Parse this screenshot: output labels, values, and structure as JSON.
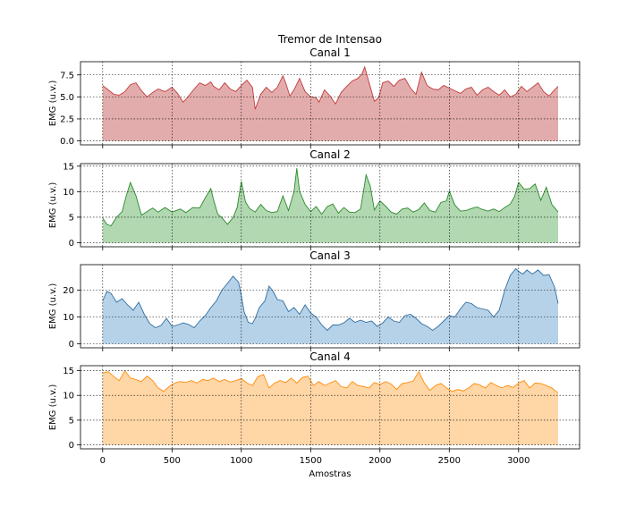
{
  "figure": {
    "suptitle": "Tremor de Intensao",
    "xlabel": "Amostras"
  },
  "chart_data": [
    {
      "type": "area",
      "title": "Canal 1",
      "ylabel": "EMG (u.v.)",
      "xlim": [
        -160,
        3440
      ],
      "ylim": [
        -0.45,
        9.0
      ],
      "x_ticks": [
        0,
        500,
        1000,
        1500,
        2000,
        2500,
        3000
      ],
      "y_ticks": [
        0.0,
        2.5,
        5.0,
        7.5
      ],
      "y_tick_labels": [
        "0.0",
        "2.5",
        "5.0",
        "7.5"
      ],
      "grid": true,
      "line_color": "#c23b3b",
      "fill_color": "#e3acac",
      "x": [
        0,
        40,
        80,
        120,
        160,
        200,
        240,
        280,
        320,
        360,
        400,
        450,
        500,
        540,
        580,
        620,
        660,
        700,
        740,
        780,
        800,
        840,
        880,
        920,
        960,
        1000,
        1040,
        1080,
        1100,
        1140,
        1180,
        1220,
        1260,
        1300,
        1320,
        1350,
        1380,
        1420,
        1460,
        1500,
        1540,
        1560,
        1600,
        1640,
        1680,
        1720,
        1760,
        1800,
        1840,
        1870,
        1890,
        1920,
        1960,
        1990,
        2020,
        2060,
        2100,
        2140,
        2180,
        2220,
        2260,
        2300,
        2340,
        2380,
        2420,
        2460,
        2500,
        2540,
        2580,
        2620,
        2660,
        2700,
        2740,
        2780,
        2820,
        2860,
        2900,
        2940,
        2980,
        3020,
        3060,
        3100,
        3140,
        3180,
        3220,
        3260,
        3285
      ],
      "values": [
        6.3,
        5.8,
        5.3,
        5.2,
        5.6,
        6.4,
        6.6,
        5.7,
        5.0,
        5.5,
        5.9,
        5.6,
        6.1,
        5.4,
        4.4,
        5.1,
        5.9,
        6.6,
        6.3,
        6.7,
        6.2,
        5.8,
        6.6,
        5.9,
        5.6,
        6.3,
        6.9,
        6.1,
        3.6,
        5.3,
        6.1,
        5.5,
        6.1,
        7.4,
        6.6,
        5.1,
        5.8,
        7.1,
        5.6,
        5.0,
        4.9,
        4.4,
        5.8,
        5.1,
        4.2,
        5.5,
        6.2,
        6.8,
        7.1,
        7.6,
        8.4,
        6.7,
        4.5,
        4.9,
        6.6,
        6.8,
        6.2,
        6.9,
        7.1,
        6.0,
        5.3,
        7.8,
        6.3,
        5.9,
        5.8,
        6.3,
        6.0,
        5.7,
        5.4,
        5.9,
        6.1,
        5.2,
        5.8,
        6.1,
        5.6,
        5.2,
        5.8,
        5.0,
        5.3,
        6.2,
        5.6,
        6.1,
        6.6,
        5.6,
        5.1,
        5.8,
        6.2
      ]
    },
    {
      "type": "area",
      "title": "Canal 2",
      "ylabel": "EMG (u.v.)",
      "xlim": [
        -160,
        3440
      ],
      "ylim": [
        -0.8,
        15.5
      ],
      "x_ticks": [
        0,
        500,
        1000,
        1500,
        2000,
        2500,
        3000
      ],
      "y_ticks": [
        0,
        5,
        10,
        15
      ],
      "y_tick_labels": [
        "0",
        "5",
        "10",
        "15"
      ],
      "grid": true,
      "line_color": "#2b8a2b",
      "fill_color": "#b1d8b1",
      "x": [
        0,
        30,
        60,
        100,
        140,
        170,
        200,
        240,
        280,
        320,
        360,
        400,
        450,
        500,
        560,
        600,
        650,
        700,
        740,
        780,
        800,
        830,
        860,
        900,
        940,
        970,
        1000,
        1030,
        1060,
        1100,
        1140,
        1180,
        1220,
        1260,
        1300,
        1340,
        1380,
        1400,
        1420,
        1460,
        1500,
        1540,
        1580,
        1620,
        1660,
        1700,
        1740,
        1780,
        1820,
        1860,
        1880,
        1900,
        1930,
        1960,
        2000,
        2040,
        2080,
        2120,
        2160,
        2200,
        2240,
        2280,
        2320,
        2360,
        2400,
        2440,
        2480,
        2500,
        2540,
        2580,
        2620,
        2660,
        2700,
        2740,
        2780,
        2820,
        2860,
        2900,
        2940,
        2970,
        3000,
        3040,
        3080,
        3120,
        3160,
        3200,
        3240,
        3285
      ],
      "values": [
        4.8,
        3.6,
        3.3,
        5.0,
        6.1,
        9.2,
        11.8,
        9.2,
        5.4,
        6.1,
        6.8,
        6.0,
        6.9,
        6.0,
        6.6,
        5.9,
        6.9,
        6.8,
        8.8,
        10.6,
        8.4,
        5.6,
        4.9,
        3.6,
        4.9,
        6.9,
        12.0,
        8.0,
        6.7,
        6.0,
        7.5,
        6.3,
        5.9,
        6.1,
        9.2,
        6.3,
        10.0,
        14.6,
        10.1,
        7.5,
        6.1,
        7.1,
        5.6,
        7.1,
        7.6,
        5.8,
        6.9,
        6.0,
        5.9,
        6.6,
        9.9,
        13.3,
        11.1,
        6.4,
        8.2,
        7.2,
        6.0,
        5.6,
        6.6,
        6.8,
        6.0,
        6.5,
        7.8,
        6.3,
        6.0,
        7.9,
        8.2,
        10.1,
        7.4,
        6.2,
        6.3,
        6.7,
        7.0,
        6.5,
        6.2,
        6.6,
        6.1,
        6.9,
        7.6,
        9.0,
        11.8,
        10.5,
        10.6,
        11.5,
        8.3,
        10.9,
        7.5,
        6.0
      ]
    },
    {
      "type": "area",
      "title": "Canal 3",
      "ylabel": "EMG (u.v.)",
      "xlim": [
        -160,
        3440
      ],
      "ylim": [
        -1.5,
        29.5
      ],
      "x_ticks": [
        0,
        500,
        1000,
        1500,
        2000,
        2500,
        3000
      ],
      "y_ticks": [
        0,
        10,
        20
      ],
      "y_tick_labels": [
        "0",
        "10",
        "20"
      ],
      "grid": true,
      "line_color": "#2f6ea3",
      "fill_color": "#b6d2e8",
      "x": [
        0,
        30,
        60,
        100,
        140,
        180,
        220,
        260,
        300,
        340,
        380,
        420,
        460,
        500,
        540,
        580,
        620,
        660,
        700,
        740,
        780,
        820,
        860,
        900,
        940,
        980,
        1000,
        1020,
        1050,
        1080,
        1100,
        1130,
        1170,
        1200,
        1230,
        1260,
        1300,
        1340,
        1380,
        1420,
        1460,
        1500,
        1540,
        1580,
        1620,
        1660,
        1700,
        1740,
        1780,
        1820,
        1860,
        1900,
        1940,
        1980,
        2020,
        2060,
        2100,
        2140,
        2180,
        2220,
        2260,
        2300,
        2340,
        2380,
        2420,
        2460,
        2500,
        2540,
        2580,
        2620,
        2660,
        2700,
        2740,
        2780,
        2820,
        2860,
        2900,
        2940,
        2980,
        3000,
        3030,
        3060,
        3100,
        3140,
        3180,
        3220,
        3260,
        3285
      ],
      "values": [
        16.0,
        19.5,
        18.8,
        15.5,
        16.8,
        14.5,
        12.5,
        15.5,
        11.0,
        7.5,
        6.0,
        6.8,
        9.5,
        6.5,
        7.0,
        7.8,
        7.2,
        6.0,
        8.5,
        10.5,
        13.5,
        16.0,
        20.0,
        22.5,
        25.2,
        23.0,
        18.0,
        12.0,
        8.0,
        7.5,
        9.5,
        13.5,
        16.0,
        21.5,
        19.5,
        16.5,
        16.0,
        12.0,
        13.5,
        11.0,
        14.5,
        11.5,
        10.0,
        7.0,
        5.0,
        7.0,
        7.0,
        7.8,
        9.5,
        8.0,
        8.8,
        8.0,
        8.5,
        6.5,
        7.8,
        10.0,
        8.5,
        8.0,
        10.5,
        11.0,
        9.5,
        7.5,
        6.5,
        5.0,
        6.5,
        8.5,
        10.5,
        10.0,
        13.0,
        15.5,
        15.0,
        13.5,
        13.0,
        12.5,
        10.0,
        12.5,
        20.0,
        25.5,
        28.0,
        27.0,
        26.0,
        27.5,
        26.0,
        27.5,
        25.5,
        25.8,
        21.0,
        15.0
      ]
    },
    {
      "type": "area",
      "title": "Canal 4",
      "ylabel": "EMG (u.v.)",
      "xlim": [
        -160,
        3440
      ],
      "ylim": [
        -0.8,
        16.0
      ],
      "x_ticks": [
        0,
        500,
        1000,
        1500,
        2000,
        2500,
        3000
      ],
      "y_ticks": [
        0,
        5,
        10,
        15
      ],
      "y_tick_labels": [
        "0",
        "5",
        "10",
        "15"
      ],
      "grid": true,
      "line_color": "#ff8c0a",
      "fill_color": "#ffd6a6",
      "x": [
        0,
        40,
        80,
        120,
        160,
        200,
        240,
        280,
        320,
        360,
        400,
        440,
        480,
        520,
        560,
        600,
        640,
        680,
        720,
        760,
        800,
        840,
        880,
        920,
        960,
        1000,
        1040,
        1080,
        1120,
        1160,
        1200,
        1240,
        1280,
        1320,
        1360,
        1400,
        1440,
        1480,
        1520,
        1560,
        1600,
        1640,
        1680,
        1720,
        1760,
        1800,
        1840,
        1880,
        1920,
        1960,
        2000,
        2040,
        2080,
        2120,
        2160,
        2200,
        2240,
        2280,
        2320,
        2360,
        2400,
        2440,
        2480,
        2520,
        2560,
        2600,
        2640,
        2680,
        2720,
        2760,
        2800,
        2840,
        2880,
        2920,
        2960,
        3000,
        3040,
        3080,
        3120,
        3160,
        3200,
        3240,
        3285
      ],
      "values": [
        14.5,
        14.8,
        13.8,
        13.0,
        15.0,
        13.5,
        13.2,
        12.8,
        13.9,
        13.0,
        11.5,
        10.8,
        11.8,
        12.5,
        12.8,
        12.6,
        13.0,
        12.5,
        13.2,
        13.0,
        13.5,
        12.8,
        13.2,
        12.7,
        13.0,
        13.4,
        12.5,
        12.0,
        13.8,
        14.2,
        11.5,
        12.5,
        13.0,
        12.6,
        13.5,
        12.5,
        13.6,
        13.9,
        12.0,
        12.8,
        12.0,
        12.5,
        13.0,
        11.8,
        11.5,
        12.8,
        12.0,
        11.8,
        11.5,
        12.6,
        12.2,
        12.8,
        12.3,
        11.2,
        12.4,
        12.6,
        12.9,
        14.8,
        12.5,
        11.0,
        12.0,
        12.4,
        11.5,
        10.8,
        11.2,
        10.9,
        11.5,
        12.4,
        12.1,
        11.5,
        12.6,
        12.0,
        11.5,
        12.0,
        11.6,
        12.5,
        13.0,
        11.5,
        12.5,
        12.4,
        12.0,
        11.5,
        10.5
      ]
    }
  ]
}
